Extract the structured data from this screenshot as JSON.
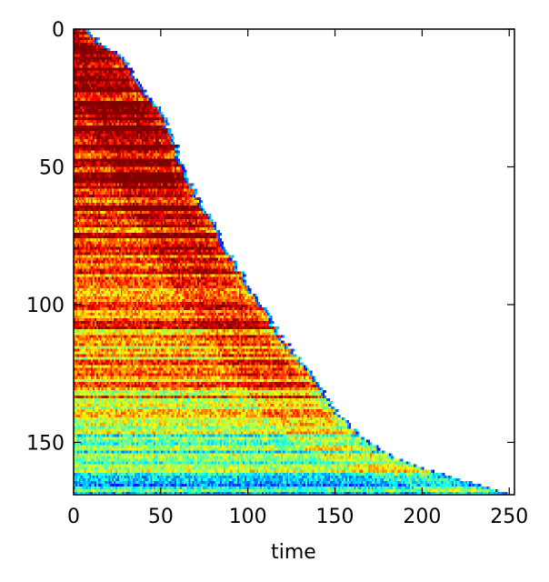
{
  "chart_data": {
    "type": "heatmap",
    "title": "",
    "xlabel": "time",
    "ylabel": "",
    "xlim": [
      0,
      253
    ],
    "ylim": [
      169,
      0
    ],
    "y_inverted": true,
    "grid": false,
    "colormap": "jet",
    "rows": 169,
    "cols": 253,
    "x_ticks": [
      0,
      50,
      100,
      150,
      200,
      250
    ],
    "y_ticks": [
      0,
      50,
      100,
      150
    ],
    "x_tick_labels": [
      "0",
      "50",
      "100",
      "150",
      "200",
      "250"
    ],
    "y_tick_labels": [
      "0",
      "50",
      "100",
      "150"
    ],
    "frontier": [
      {
        "row": 0,
        "end_time": 8
      },
      {
        "row": 5,
        "end_time": 15
      },
      {
        "row": 10,
        "end_time": 28
      },
      {
        "row": 20,
        "end_time": 38
      },
      {
        "row": 30,
        "end_time": 50
      },
      {
        "row": 40,
        "end_time": 57
      },
      {
        "row": 50,
        "end_time": 63
      },
      {
        "row": 60,
        "end_time": 70
      },
      {
        "row": 70,
        "end_time": 80
      },
      {
        "row": 80,
        "end_time": 88
      },
      {
        "row": 90,
        "end_time": 97
      },
      {
        "row": 100,
        "end_time": 108
      },
      {
        "row": 110,
        "end_time": 117
      },
      {
        "row": 120,
        "end_time": 130
      },
      {
        "row": 130,
        "end_time": 142
      },
      {
        "row": 140,
        "end_time": 152
      },
      {
        "row": 150,
        "end_time": 170
      },
      {
        "row": 155,
        "end_time": 183
      },
      {
        "row": 160,
        "end_time": 205
      },
      {
        "row": 164,
        "end_time": 228
      },
      {
        "row": 169,
        "end_time": 253
      }
    ],
    "intensity_profile": [
      {
        "row": 0,
        "level": 0.9
      },
      {
        "row": 40,
        "level": 0.93
      },
      {
        "row": 75,
        "level": 0.85
      },
      {
        "row": 100,
        "level": 0.78
      },
      {
        "row": 125,
        "level": 0.72
      },
      {
        "row": 140,
        "level": 0.6
      },
      {
        "row": 155,
        "level": 0.45
      },
      {
        "row": 169,
        "level": 0.4
      }
    ],
    "edge_color_value": 0.12
  }
}
